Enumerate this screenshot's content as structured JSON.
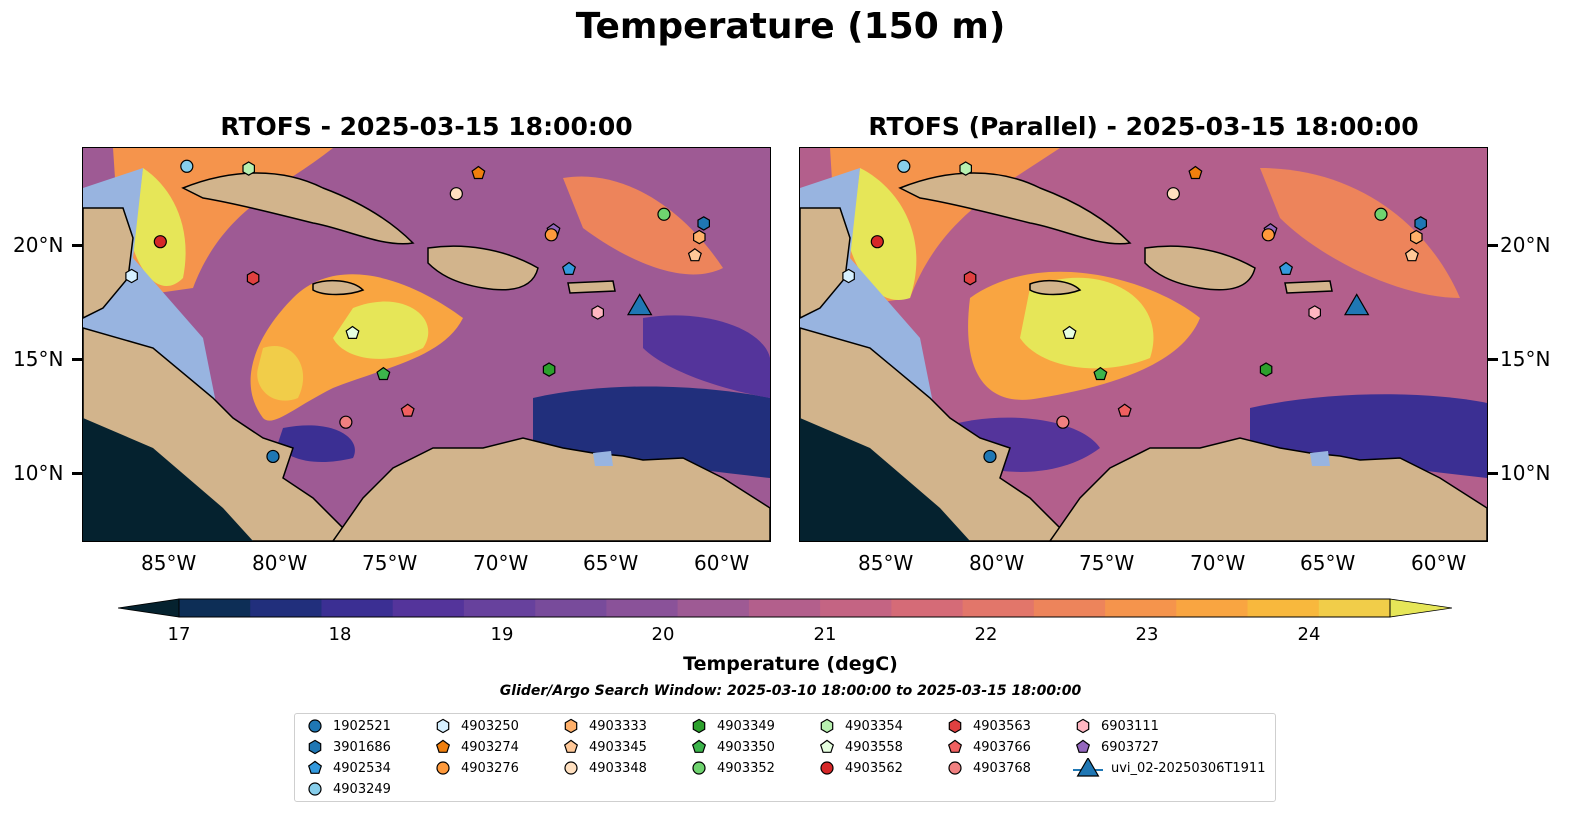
{
  "figure": {
    "suptitle": "Temperature (150 m)",
    "panels": [
      {
        "id": "rtofs",
        "title": "RTOFS - 2025-03-15 18:00:00"
      },
      {
        "id": "rtofs-parallel",
        "title": "RTOFS (Parallel) - 2025-03-15 18:00:00"
      }
    ],
    "lon_ticks": [
      "85°W",
      "80°W",
      "75°W",
      "70°W",
      "65°W",
      "60°W"
    ],
    "lat_ticks": [
      "20°N",
      "15°N",
      "10°N"
    ],
    "colorbar": {
      "label": "Temperature (degC)",
      "ticks": [
        "17",
        "18",
        "19",
        "20",
        "21",
        "22",
        "23",
        "24"
      ],
      "range": [
        16.5,
        24.5
      ],
      "extend": "both",
      "colormap": "thermal",
      "level_colors": [
        "#05222f",
        "#0d2e56",
        "#212f7c",
        "#3b2f93",
        "#54349b",
        "#67419d",
        "#784b9b",
        "#8a5299",
        "#9e5a94",
        "#b35f8c",
        "#c46483",
        "#d56b77",
        "#e2766a",
        "#ed845b",
        "#f5944c",
        "#f9a541",
        "#f8b83d",
        "#f1cd49",
        "#e6e658"
      ]
    },
    "search_window": "Glider/Argo Search Window: 2025-03-10 18:00:00 to 2025-03-15 18:00:00",
    "colors": {
      "land": "#d2b48c",
      "shelf": "#98b4e0",
      "deep_low": "#05222f"
    }
  },
  "legend": [
    {
      "label": "1902521",
      "marker": "circle",
      "color": "#1f77b4"
    },
    {
      "label": "3901686",
      "marker": "hexagon",
      "color": "#1f77b4"
    },
    {
      "label": "4902534",
      "marker": "pentagon",
      "color": "#3399dd"
    },
    {
      "label": "4903249",
      "marker": "circle",
      "color": "#87ceeb"
    },
    {
      "label": "4903250",
      "marker": "hexagon",
      "color": "#d6f0ff"
    },
    {
      "label": "4903274",
      "marker": "pentagon",
      "color": "#f07f0e"
    },
    {
      "label": "4903276",
      "marker": "circle",
      "color": "#ff9a3c"
    },
    {
      "label": "4903333",
      "marker": "hexagon",
      "color": "#ffb06a"
    },
    {
      "label": "4903345",
      "marker": "pentagon",
      "color": "#ffc898"
    },
    {
      "label": "4903348",
      "marker": "circle",
      "color": "#ffe0c0"
    },
    {
      "label": "4903349",
      "marker": "hexagon",
      "color": "#2ca02c"
    },
    {
      "label": "4903350",
      "marker": "pentagon",
      "color": "#3cb44b"
    },
    {
      "label": "4903352",
      "marker": "circle",
      "color": "#6fd36f"
    },
    {
      "label": "4903354",
      "marker": "hexagon",
      "color": "#b8f0b0"
    },
    {
      "label": "4903558",
      "marker": "pentagon",
      "color": "#e6ffe0"
    },
    {
      "label": "4903562",
      "marker": "circle",
      "color": "#d62728"
    },
    {
      "label": "4903563",
      "marker": "hexagon",
      "color": "#e04040"
    },
    {
      "label": "4903766",
      "marker": "pentagon",
      "color": "#f06060"
    },
    {
      "label": "4903768",
      "marker": "circle",
      "color": "#f08080"
    },
    {
      "label": "6903111",
      "marker": "hexagon",
      "color": "#ffb6c1"
    },
    {
      "label": "6903727",
      "marker": "pentagon",
      "color": "#9467bd"
    },
    {
      "label": "uvi_02-20250306T1911",
      "marker": "triangle",
      "color": "#1f77b4"
    }
  ],
  "observations": [
    {
      "id": "4903249",
      "lon": -84.5,
      "lat": 23.5
    },
    {
      "id": "4903354",
      "lon": -81.7,
      "lat": 23.4
    },
    {
      "id": "4903274",
      "lon": -71.3,
      "lat": 23.2
    },
    {
      "id": "4903348",
      "lon": -72.3,
      "lat": 22.3
    },
    {
      "id": "4903352",
      "lon": -62.9,
      "lat": 21.4
    },
    {
      "id": "3901686",
      "lon": -61.1,
      "lat": 21.0
    },
    {
      "id": "6903727",
      "lon": -67.9,
      "lat": 20.7
    },
    {
      "id": "4903276",
      "lon": -68.0,
      "lat": 20.5
    },
    {
      "id": "4903333",
      "lon": -61.3,
      "lat": 20.4
    },
    {
      "id": "4903345",
      "lon": -61.5,
      "lat": 19.6
    },
    {
      "id": "4903562",
      "lon": -85.7,
      "lat": 20.2
    },
    {
      "id": "4903250",
      "lon": -87.0,
      "lat": 18.7
    },
    {
      "id": "4903563",
      "lon": -81.5,
      "lat": 18.6
    },
    {
      "id": "4902534",
      "lon": -67.2,
      "lat": 19.0
    },
    {
      "id": "6903111",
      "lon": -65.9,
      "lat": 17.1
    },
    {
      "id": "uvi_02-20250306T1911",
      "lon": -64.0,
      "lat": 17.3
    },
    {
      "id": "4903558",
      "lon": -77.0,
      "lat": 16.2
    },
    {
      "id": "4903350",
      "lon": -75.6,
      "lat": 14.4
    },
    {
      "id": "4903349",
      "lon": -68.1,
      "lat": 14.6
    },
    {
      "id": "4903766",
      "lon": -74.5,
      "lat": 12.8
    },
    {
      "id": "4903768",
      "lon": -77.3,
      "lat": 12.3
    },
    {
      "id": "1902521",
      "lon": -80.6,
      "lat": 10.8
    }
  ]
}
